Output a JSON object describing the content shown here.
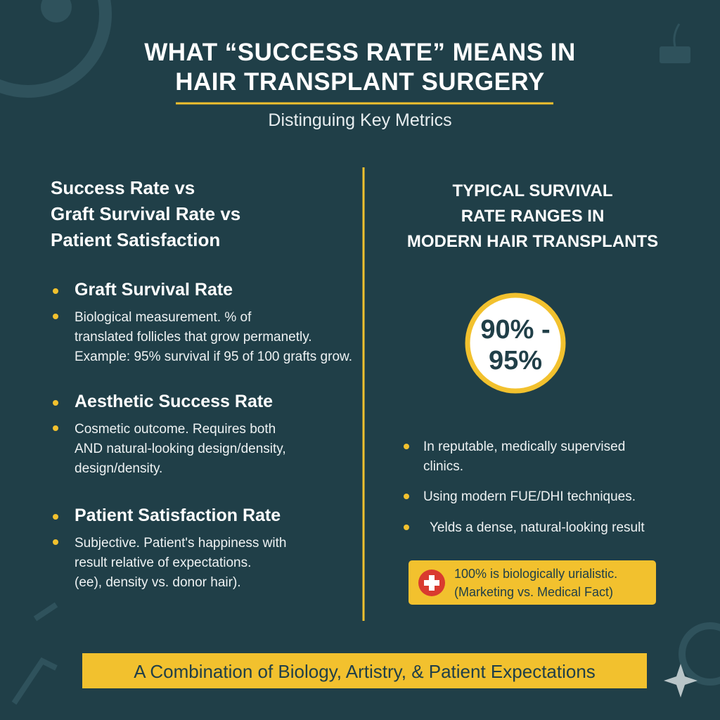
{
  "header": {
    "title_lines": [
      "WHAT “SUCCESS RATE” MEANS IN",
      "HAIR TRANSPLANT SURGERY"
    ],
    "subtitle": "Distinguing Key Metrics"
  },
  "left": {
    "heading_lines": [
      "Success Rate vs",
      "Graft Survival Rate vs",
      "Patient Satisfaction"
    ],
    "sections": [
      {
        "title": "Graft Survival Rate",
        "lines": [
          "Biological measurement. % of",
          "translated follicles that grow permanetly.",
          "Example: 95% survival if 95 of 100 grafts grow."
        ]
      },
      {
        "title": "Aesthetic Success Rate",
        "lines": [
          "Cosmetic outcome. Requires both",
          "AND natural-looking design/density,",
          "design/density."
        ]
      },
      {
        "title": "Patient Satisfaction Rate",
        "lines": [
          "Subjective. Patient's happiness with",
          "result relative of expectations.",
          "(ee), density vs. donor hair)."
        ]
      }
    ]
  },
  "right": {
    "heading_lines": [
      "TYPICAL SURVIVAL",
      "RATE RANGES IN",
      "MODERN HAIR TRANSPLANTS"
    ],
    "badge_lines": [
      "90% -",
      "95%"
    ],
    "bullets": [
      [
        "In reputable, medically supervised",
        "clinics."
      ],
      [
        "Using modern FUE/DHI techniques."
      ],
      [
        "Yelds a dense, natural-looking result"
      ]
    ],
    "note_lines": [
      "100% is biologically urialistic.",
      "(Marketing vs. Medical Fact)"
    ]
  },
  "footer": "A Combination of Biology, Artistry, & Patient Expectations"
}
